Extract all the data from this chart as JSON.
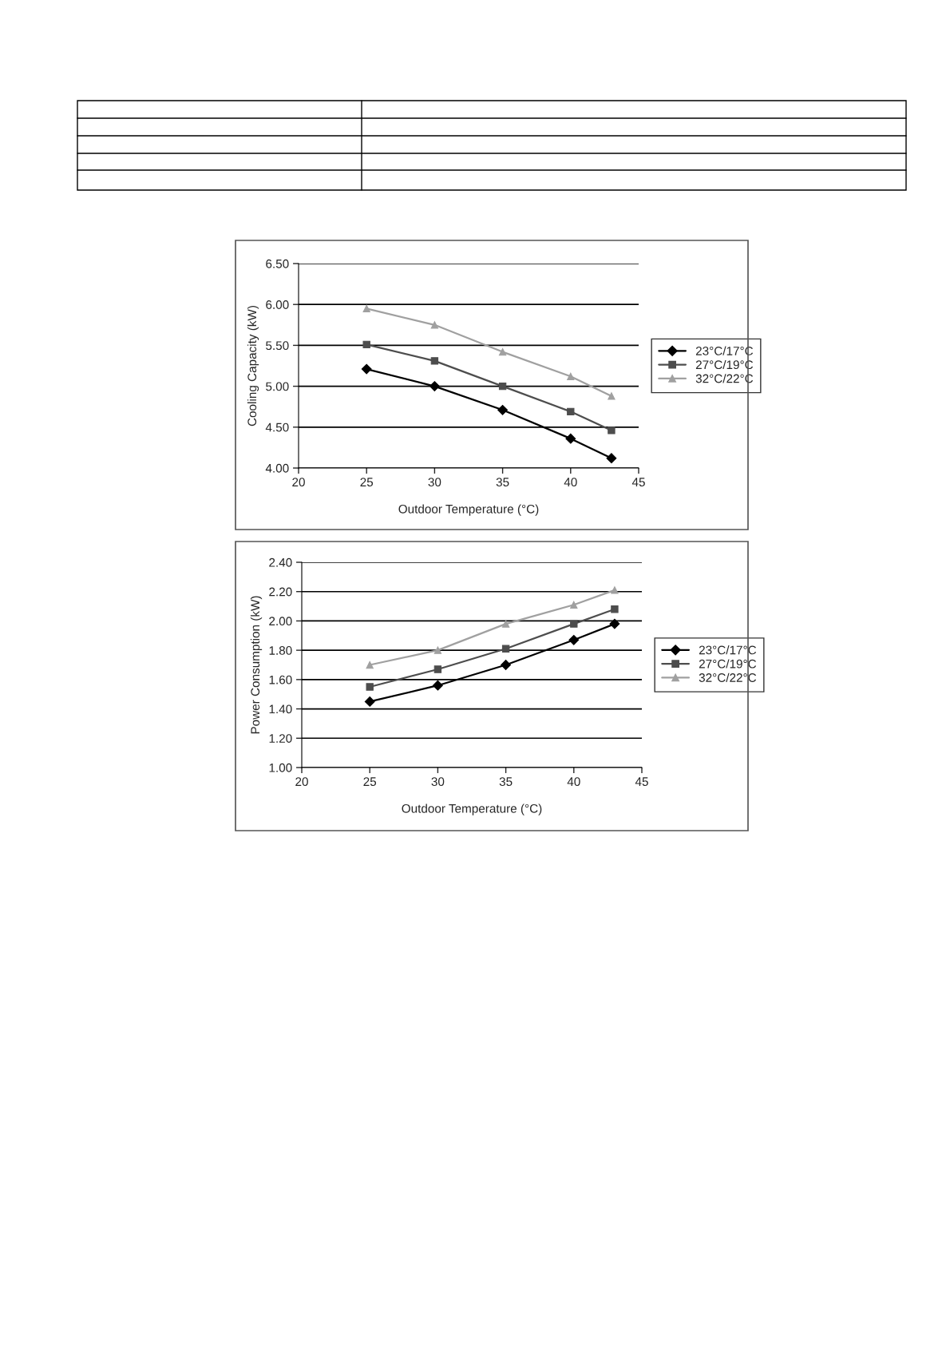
{
  "chart_data": [
    {
      "type": "line",
      "xlabel": "Outdoor Temperature (°C)",
      "ylabel": "Cooling Capacity (kW)",
      "x": [
        25,
        30,
        35,
        40,
        43
      ],
      "xlim": [
        20,
        45
      ],
      "xticks": [
        20,
        25,
        30,
        35,
        40,
        45
      ],
      "ylim": [
        4.0,
        6.5
      ],
      "yticks": [
        {
          "value": 4.0,
          "label": "4.00"
        },
        {
          "value": 4.5,
          "label": "4.50"
        },
        {
          "value": 5.0,
          "label": "5.00"
        },
        {
          "value": 5.5,
          "label": "5.50"
        },
        {
          "value": 6.0,
          "label": "6.00"
        },
        {
          "value": 6.5,
          "label": "6.50"
        }
      ],
      "grid": "y",
      "legend": "right",
      "series": [
        {
          "name": "23°C/17°C",
          "color": "#000000",
          "marker": "diamond",
          "values": [
            5.21,
            5.0,
            4.71,
            4.36,
            4.12
          ]
        },
        {
          "name": "27°C/19°C",
          "color": "#4d4d4d",
          "marker": "square",
          "values": [
            5.51,
            5.31,
            5.0,
            4.69,
            4.46
          ]
        },
        {
          "name": "32°C/22°C",
          "color": "#a0a0a0",
          "marker": "triangle",
          "values": [
            5.95,
            5.75,
            5.42,
            5.12,
            4.88
          ]
        }
      ]
    },
    {
      "type": "line",
      "xlabel": "Outdoor Temperature (°C)",
      "ylabel": "Power Consumption (kW)",
      "x": [
        25,
        30,
        35,
        40,
        43
      ],
      "xlim": [
        20,
        45
      ],
      "xticks": [
        20,
        25,
        30,
        35,
        40,
        45
      ],
      "ylim": [
        1.0,
        2.4
      ],
      "yticks": [
        {
          "value": 1.0,
          "label": "1.00"
        },
        {
          "value": 1.2,
          "label": "1.20"
        },
        {
          "value": 1.4,
          "label": "1.40"
        },
        {
          "value": 1.6,
          "label": "1.60"
        },
        {
          "value": 1.8,
          "label": "1.80"
        },
        {
          "value": 2.0,
          "label": "2.00"
        },
        {
          "value": 2.2,
          "label": "2.20"
        },
        {
          "value": 2.4,
          "label": "2.40"
        }
      ],
      "grid": "y",
      "legend": "right",
      "series": [
        {
          "name": "23°C/17°C",
          "color": "#000000",
          "marker": "diamond",
          "values": [
            1.45,
            1.56,
            1.7,
            1.87,
            1.98
          ]
        },
        {
          "name": "27°C/19°C",
          "color": "#4d4d4d",
          "marker": "square",
          "values": [
            1.55,
            1.67,
            1.81,
            1.98,
            2.08
          ]
        },
        {
          "name": "32°C/22°C",
          "color": "#a0a0a0",
          "marker": "triangle",
          "values": [
            1.7,
            1.8,
            1.98,
            2.11,
            2.21
          ]
        }
      ]
    }
  ]
}
